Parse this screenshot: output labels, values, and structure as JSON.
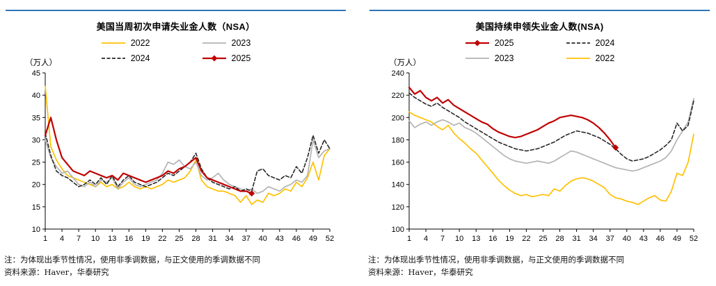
{
  "accent": {
    "rule_blue": "#2E75B6"
  },
  "chart_data": [
    {
      "type": "line",
      "title": "美国当周初次申请失业金人数（NSA）",
      "unit_label": "（万人）",
      "ylim": [
        10,
        45
      ],
      "ytick_step": 5,
      "x_range": [
        1,
        52
      ],
      "x_ticks": [
        1,
        4,
        7,
        10,
        13,
        16,
        19,
        22,
        25,
        28,
        31,
        34,
        37,
        40,
        43,
        46,
        49,
        52
      ],
      "legend_rows": [
        [
          "2022",
          "2023"
        ],
        [
          "2024",
          "2025"
        ]
      ],
      "series": [
        {
          "name": "2022",
          "color": "#FFC000",
          "dash": false,
          "marker": null,
          "values": [
            42,
            28.5,
            25.5,
            23.5,
            22,
            21.5,
            21,
            20.5,
            20,
            19.5,
            20.5,
            19.5,
            20,
            19,
            19.5,
            20.5,
            19.5,
            19,
            19.5,
            19,
            19.5,
            20,
            21,
            20.5,
            21,
            21.5,
            23,
            25.5,
            21,
            19.5,
            19,
            18.5,
            18.5,
            18,
            17.5,
            16,
            17.5,
            15.5,
            16.5,
            16,
            18,
            17.5,
            18,
            19,
            18.5,
            20.5,
            19.5,
            21.5,
            25,
            21,
            26.5,
            28
          ]
        },
        {
          "name": "2023",
          "color": "#B3B3B3",
          "dash": false,
          "marker": null,
          "values": [
            30,
            26,
            24,
            22.5,
            23,
            21.5,
            20,
            19.5,
            20.5,
            19.5,
            21,
            20.5,
            21.5,
            19,
            20.5,
            21.5,
            20,
            19.5,
            20,
            20.5,
            21,
            22.5,
            25,
            24.5,
            25.5,
            24,
            23.5,
            25,
            22,
            21,
            21.5,
            22.5,
            21,
            20,
            19.5,
            19,
            18.5,
            19,
            18,
            18.5,
            19.5,
            19,
            18.5,
            19.5,
            20,
            21,
            20.5,
            22,
            30,
            26,
            27.5,
            28
          ]
        },
        {
          "name": "2024",
          "color": "#262626",
          "dash": true,
          "marker": null,
          "values": [
            31.5,
            26.5,
            23,
            22,
            21.5,
            20.5,
            19.5,
            20,
            21,
            20,
            21.5,
            20,
            22,
            19.5,
            21,
            22,
            20.5,
            20,
            19.5,
            20,
            20.5,
            21.5,
            22.5,
            22,
            23,
            24,
            25,
            27,
            23.5,
            21.5,
            20.5,
            20,
            19.5,
            19,
            19.5,
            18.5,
            19,
            18.5,
            23,
            23.5,
            22,
            21.5,
            21,
            22,
            21.5,
            24,
            22.5,
            26,
            31,
            27,
            30,
            28
          ]
        },
        {
          "name": "2025",
          "color": "#C00000",
          "dash": false,
          "marker": "diamond",
          "values": [
            31,
            35,
            30,
            26,
            24.5,
            23,
            22.5,
            22,
            23,
            22.5,
            22,
            21.5,
            22,
            21,
            22.5,
            22,
            21.5,
            21,
            20.5,
            21,
            21.5,
            22,
            23,
            22.5,
            23.5,
            24,
            25,
            26,
            23,
            21.5,
            21,
            20.5,
            20,
            19.5,
            19,
            18.5,
            18.5,
            18
          ]
        }
      ],
      "note": "注：为体现出季节性情况，使用非季调数据，与正文使用的季调数据不同",
      "source": "资料来源：Haver，华泰研究"
    },
    {
      "type": "line",
      "title": "美国持续申领失业金人数(NSA)",
      "unit_label": "（万人）",
      "ylim": [
        100,
        240
      ],
      "ytick_step": 20,
      "x_range": [
        1,
        52
      ],
      "x_ticks": [
        1,
        4,
        7,
        10,
        13,
        16,
        19,
        22,
        25,
        28,
        31,
        34,
        37,
        40,
        43,
        46,
        49,
        52
      ],
      "legend_rows": [
        [
          "2025",
          "2024"
        ],
        [
          "2023",
          "2022"
        ]
      ],
      "series": [
        {
          "name": "2022",
          "color": "#FFC000",
          "dash": false,
          "marker": null,
          "values": [
            205,
            202,
            200,
            198,
            196,
            192,
            189,
            193,
            186,
            181,
            177,
            172,
            168,
            162,
            156,
            150,
            144,
            139,
            135,
            132,
            130,
            131,
            129,
            130,
            131,
            130,
            136,
            134,
            139,
            143,
            145,
            146,
            145,
            143,
            140,
            137,
            131,
            128,
            127,
            125,
            124,
            122,
            125,
            128,
            130,
            126,
            125,
            134,
            150,
            148,
            160,
            185
          ]
        },
        {
          "name": "2023",
          "color": "#B3B3B3",
          "dash": false,
          "marker": null,
          "values": [
            197,
            191,
            194,
            196,
            193,
            196,
            198,
            196,
            193,
            195,
            191,
            189,
            186,
            182,
            178,
            174,
            170,
            166,
            163,
            161,
            160,
            159,
            160,
            161,
            160,
            159,
            161,
            164,
            167,
            170,
            169,
            167,
            165,
            163,
            161,
            159,
            157,
            155,
            154,
            153,
            152,
            153,
            155,
            157,
            159,
            161,
            164,
            170,
            180,
            188,
            196,
            217
          ]
        },
        {
          "name": "2024",
          "color": "#262626",
          "dash": true,
          "marker": null,
          "values": [
            222,
            218,
            215,
            212,
            210,
            213,
            209,
            206,
            203,
            200,
            196,
            193,
            190,
            187,
            184,
            181,
            178,
            176,
            174,
            172,
            171,
            170,
            171,
            172,
            174,
            176,
            178,
            181,
            184,
            186,
            188,
            187,
            186,
            184,
            182,
            179,
            176,
            172,
            167,
            163,
            161,
            162,
            163,
            165,
            168,
            171,
            175,
            180,
            195,
            188,
            193,
            215
          ]
        },
        {
          "name": "2025",
          "color": "#C00000",
          "dash": false,
          "marker": "diamond",
          "values": [
            227,
            221,
            224,
            218,
            215,
            218,
            213,
            216,
            211,
            208,
            205,
            202,
            199,
            196,
            194,
            190,
            187,
            185,
            183,
            182,
            183,
            185,
            187,
            189,
            192,
            195,
            197,
            200,
            201,
            202,
            201,
            200,
            198,
            195,
            191,
            186,
            180,
            173
          ]
        }
      ],
      "note": "注：为体现出季节性情况，使用非季调数据，与正文使用的季调数据不同",
      "source": "资料来源：Haver，华泰研究"
    }
  ]
}
